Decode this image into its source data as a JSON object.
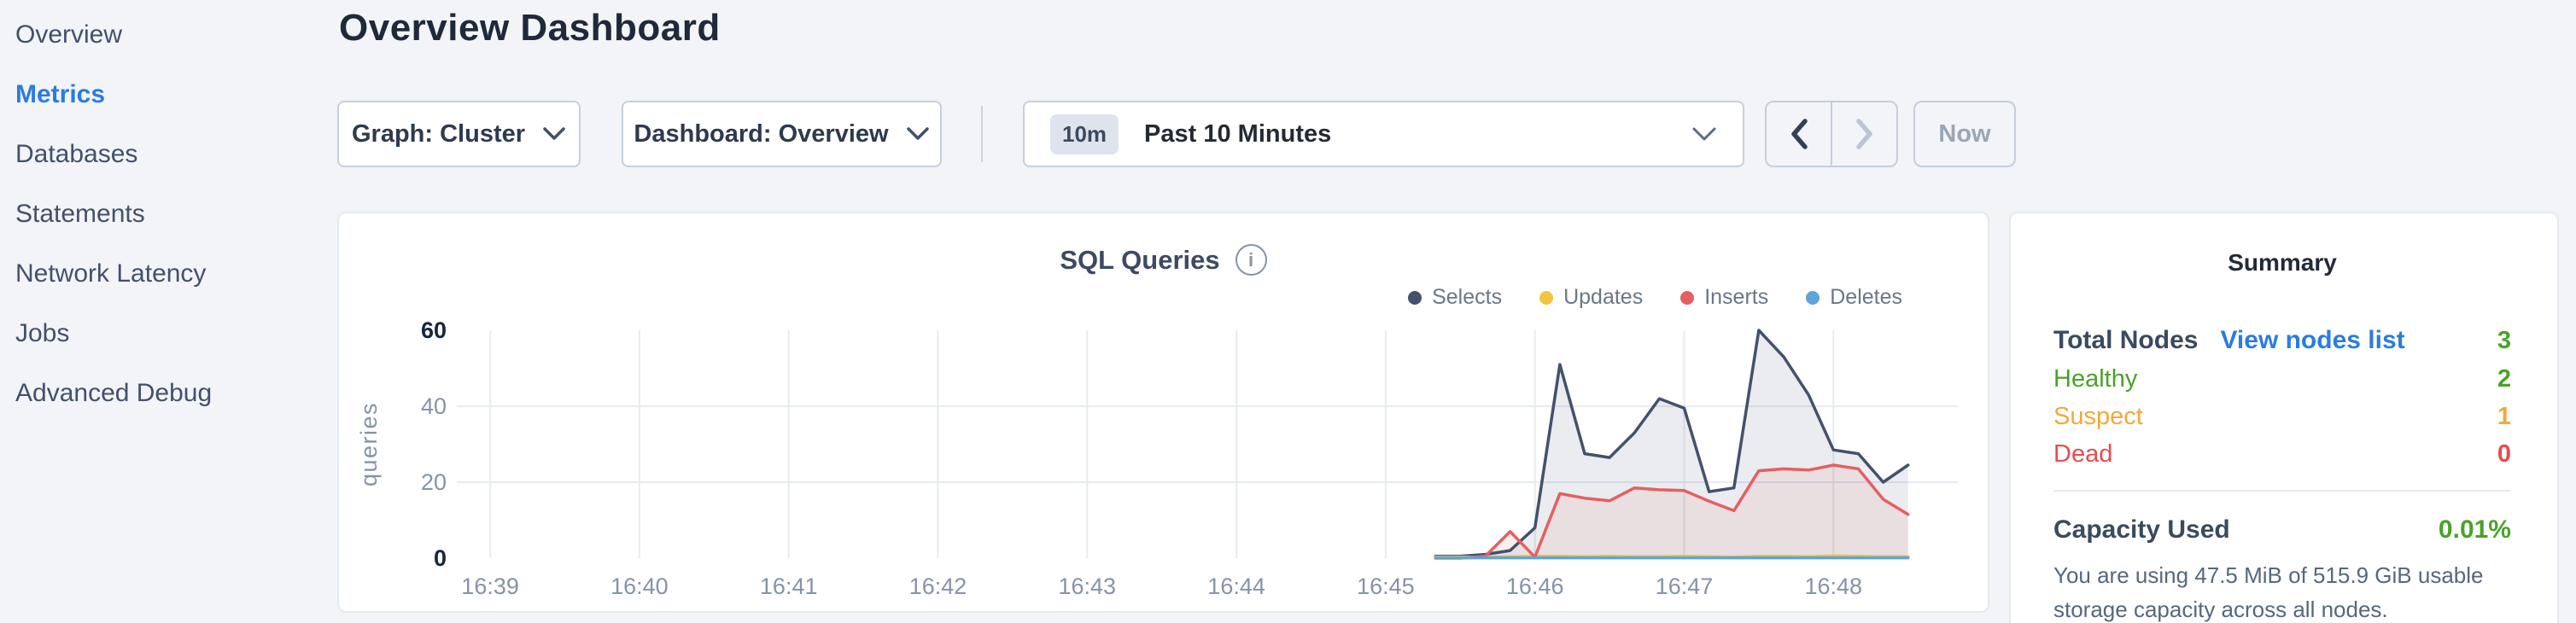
{
  "sidebar": {
    "items": [
      {
        "label": "Overview",
        "active": false
      },
      {
        "label": "Metrics",
        "active": true
      },
      {
        "label": "Databases",
        "active": false
      },
      {
        "label": "Statements",
        "active": false
      },
      {
        "label": "Network Latency",
        "active": false
      },
      {
        "label": "Jobs",
        "active": false
      },
      {
        "label": "Advanced Debug",
        "active": false
      }
    ]
  },
  "header": {
    "title": "Overview Dashboard"
  },
  "controls": {
    "graph_selector_label": "Graph: Cluster",
    "dashboard_selector_label": "Dashboard: Overview",
    "time_badge": "10m",
    "time_label": "Past 10 Minutes",
    "now_label": "Now"
  },
  "chart_data": {
    "type": "area",
    "title": "SQL Queries",
    "ylabel": "queries",
    "ylim": [
      0,
      60
    ],
    "y_ticks": [
      0,
      20,
      40,
      60
    ],
    "grid": true,
    "legend_position": "top-right",
    "x_domain_seconds": 600,
    "x_first_tick_offset_seconds": 10,
    "x_tick_interval_seconds": 60,
    "x_tick_labels": [
      "16:39",
      "16:40",
      "16:41",
      "16:42",
      "16:43",
      "16:44",
      "16:45",
      "16:46",
      "16:47",
      "16:48"
    ],
    "x_offsets_seconds": [
      390,
      400,
      410,
      420,
      430,
      440,
      450,
      460,
      470,
      480,
      490,
      500,
      510,
      520,
      530,
      540,
      550,
      560,
      570,
      580
    ],
    "series": [
      {
        "name": "Selects",
        "color": "#44516c",
        "fill": "rgba(68,81,108,0.11)",
        "values": [
          0.5,
          0.5,
          1,
          2,
          8,
          51,
          27.5,
          26.5,
          33,
          42,
          39.5,
          17.5,
          18.5,
          60,
          53,
          43,
          28.5,
          27.5,
          20,
          24.5
        ]
      },
      {
        "name": "Updates",
        "color": "#f0c53d",
        "fill": "none",
        "values": [
          0.3,
          0.3,
          0.3,
          0.4,
          0.5,
          0.5,
          0.4,
          0.5,
          0.4,
          0.4,
          0.5,
          0.4,
          0.3,
          0.5,
          0.5,
          0.4,
          0.6,
          0.5,
          0.4,
          0.4
        ]
      },
      {
        "name": "Inserts",
        "color": "#e4605f",
        "fill": "rgba(228,96,95,0.10)",
        "values": [
          0,
          0,
          0.5,
          7,
          0.3,
          17,
          15.8,
          15.1,
          18.5,
          18,
          17.8,
          15,
          12.5,
          23,
          23.5,
          23.2,
          24.5,
          23.5,
          15.5,
          11.5
        ]
      },
      {
        "name": "Deletes",
        "color": "#5ea4d8",
        "fill": "none",
        "values": [
          0.1,
          0.1,
          0.1,
          0.1,
          0.1,
          0.1,
          0.1,
          0.1,
          0.1,
          0.1,
          0.1,
          0.1,
          0.1,
          0.1,
          0.1,
          0.1,
          0.1,
          0.1,
          0.1,
          0.1
        ]
      }
    ]
  },
  "summary": {
    "title": "Summary",
    "total_nodes": {
      "label": "Total Nodes",
      "link": "View nodes list",
      "value": "3"
    },
    "healthy": {
      "label": "Healthy",
      "value": "2"
    },
    "suspect": {
      "label": "Suspect",
      "value": "1"
    },
    "dead": {
      "label": "Dead",
      "value": "0"
    },
    "capacity": {
      "label": "Capacity Used",
      "value": "0.01%"
    },
    "capacity_note": "You are using 47.5 MiB of 515.9 GiB usable storage capacity across all nodes."
  },
  "colors": {
    "accent_blue": "#2a7ce1",
    "healthy_green": "#49a228",
    "suspect_orange": "#f2a93c",
    "dead_red": "#e64c50"
  }
}
